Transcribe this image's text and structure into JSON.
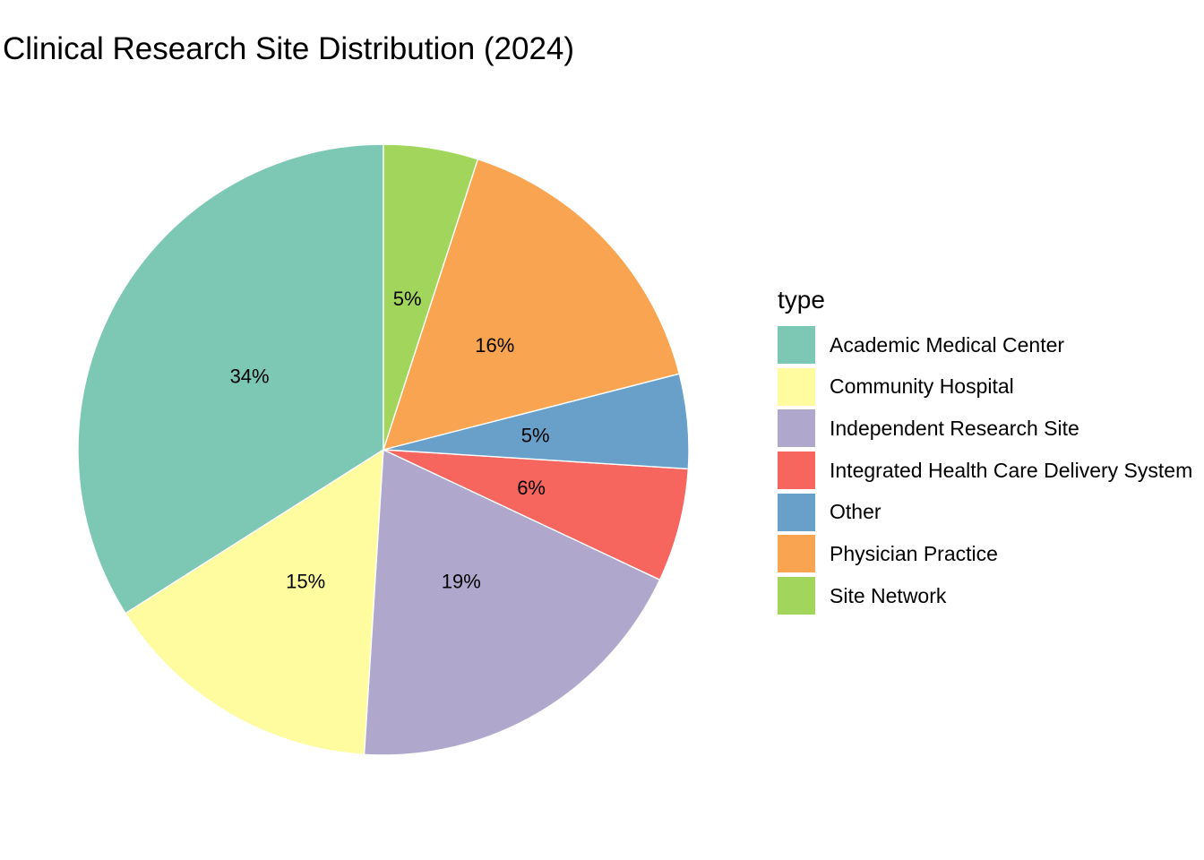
{
  "title": "Clinical Research Site Distribution (2024)",
  "legend": {
    "title": "type",
    "position": "right"
  },
  "chart_data": {
    "type": "pie",
    "title": "Clinical Research Site Distribution (2024)",
    "legend_title": "type",
    "legend_position": "right",
    "direction": "counterclockwise",
    "start_angle_deg": 90,
    "label_radius_fraction": 0.5,
    "slice_border_color": "#FFFFFF",
    "label_text_color": "#000000",
    "background_color": "#FFFFFF",
    "series": [
      {
        "name": "Academic Medical Center",
        "value": 34,
        "label": "34%",
        "color": "#7CC8B5"
      },
      {
        "name": "Community Hospital",
        "value": 15,
        "label": "15%",
        "color": "#FEFC9E"
      },
      {
        "name": "Independent Research Site",
        "value": 19,
        "label": "19%",
        "color": "#AFA8CC"
      },
      {
        "name": "Integrated Health Care Delivery System",
        "value": 6,
        "label": "6%",
        "color": "#F6655E"
      },
      {
        "name": "Other",
        "value": 5,
        "label": "5%",
        "color": "#69A0C9"
      },
      {
        "name": "Physician Practice",
        "value": 16,
        "label": "16%",
        "color": "#F9A450"
      },
      {
        "name": "Site Network",
        "value": 5,
        "label": "5%",
        "color": "#A2D55B"
      }
    ]
  }
}
